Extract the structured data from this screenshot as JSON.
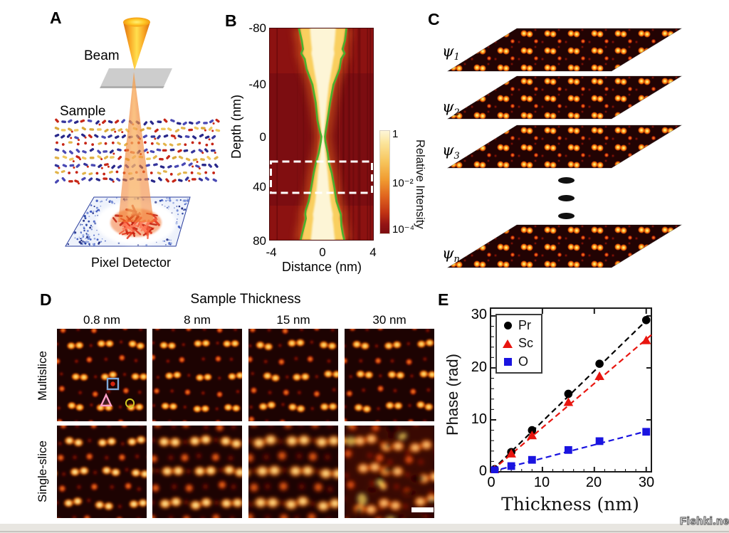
{
  "figure": {
    "panels": {
      "a": {
        "label": "A",
        "beam_label": "Beam",
        "sample_label": "Sample",
        "detector_label": "Pixel Detector"
      },
      "b": {
        "label": "B"
      },
      "c": {
        "label": "C",
        "wavefunctions": [
          {
            "base": "ψ",
            "sub": "1"
          },
          {
            "base": "ψ",
            "sub": "2"
          },
          {
            "base": "ψ",
            "sub": "3"
          },
          {
            "base": "ψ",
            "sub": "n"
          }
        ]
      },
      "d": {
        "label": "D",
        "title": "Sample Thickness",
        "columns": [
          "0.8 nm",
          "8 nm",
          "15 nm",
          "30 nm"
        ],
        "rows": [
          "Multislice",
          "Single-slice"
        ]
      },
      "e": {
        "label": "E"
      }
    },
    "watermark": "Fishki.net"
  },
  "chart_data": [
    {
      "id": "panel-b-beam-depth-heatmap",
      "type": "heatmap",
      "title": "",
      "xlabel": "Distance (nm)",
      "ylabel": "Depth (nm)",
      "xlim": [
        -4,
        4
      ],
      "ylim": [
        80,
        -80
      ],
      "xticks": [
        "-4",
        "0",
        "4"
      ],
      "yticks": [
        "-80",
        "-40",
        "0",
        "40",
        "80"
      ],
      "colorbar": {
        "label": "Relative Intensity",
        "tick_labels": [
          "1",
          "10⁻²",
          "10⁻⁴"
        ],
        "scale": "log",
        "range": [
          0.0001,
          1
        ]
      },
      "highlight_box_depth_nm": [
        20,
        45
      ],
      "description": "Hourglass-shaped bright beam intensity centered at distance 0 narrowing to a waist at depth 0, outlined by green contours; white dashed box marks depth ≈ 20–45 nm",
      "colors": {
        "background": "#7c0d11",
        "bright": "#fdf4d2",
        "contour": "#3fb32a",
        "box": "#ffffff"
      }
    },
    {
      "id": "panel-e-phase-vs-thickness",
      "type": "scatter",
      "title": "",
      "xlabel": "Thickness (nm)",
      "ylabel": "Phase (rad)",
      "xlim": [
        0,
        31
      ],
      "ylim": [
        0,
        31.5
      ],
      "xticks": [
        "0",
        "10",
        "20",
        "30"
      ],
      "yticks": [
        "0",
        "10",
        "20",
        "30"
      ],
      "x": [
        0.8,
        4,
        8,
        15,
        21,
        30
      ],
      "series": [
        {
          "name": "Pr",
          "marker": "circle",
          "color": "#000000",
          "line": "dashed",
          "trend_slope": 0.97,
          "values": [
            0.5,
            3.8,
            8.0,
            15.0,
            20.8,
            29.2
          ]
        },
        {
          "name": "Sc",
          "marker": "triangle",
          "color": "#e8150f",
          "line": "dashed",
          "trend_slope": 0.85,
          "values": [
            0.4,
            3.5,
            7.0,
            13.4,
            18.4,
            25.3
          ]
        },
        {
          "name": "O",
          "marker": "square",
          "color": "#1a14e0",
          "line": "dashed",
          "trend_slope": 0.26,
          "values": [
            0.3,
            1.1,
            2.3,
            4.2,
            5.9,
            7.7
          ]
        }
      ],
      "legend_position": "upper left",
      "grid": false
    }
  ]
}
